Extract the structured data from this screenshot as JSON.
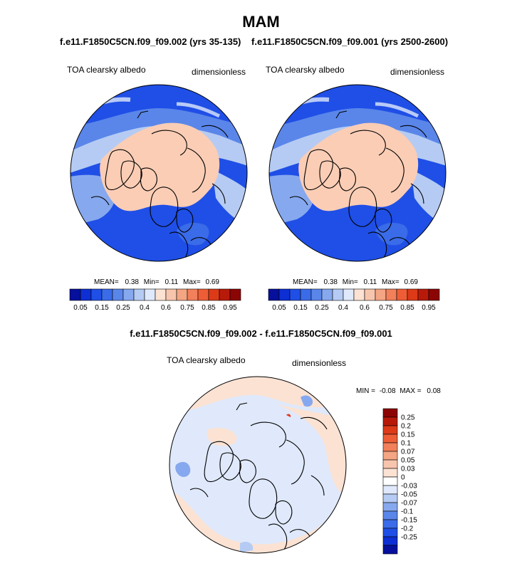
{
  "page": {
    "title": "MAM",
    "diff_title": "f.e11.F1850C5CN.f09_f09.002 - f.e11.F1850C5CN.f09_f09.001"
  },
  "panels": [
    {
      "case_title": "f.e11.F1850C5CN.f09_f09.002 (yrs 35-135)",
      "variable": "TOA clearsky albedo",
      "units": "dimensionless",
      "stats": {
        "mean_label": "MEAN=",
        "mean": "0.38",
        "min_label": "Min=",
        "min": "0.11",
        "max_label": "Max=",
        "max": "0.69"
      }
    },
    {
      "case_title": "f.e11.F1850C5CN.f09_f09.001 (yrs 2500-2600)",
      "variable": "TOA clearsky albedo",
      "units": "dimensionless",
      "stats": {
        "mean_label": "MEAN=",
        "mean": "0.38",
        "min_label": "Min=",
        "min": "0.11",
        "max_label": "Max=",
        "max": "0.69"
      }
    }
  ],
  "diff_panel": {
    "variable": "TOA clearsky albedo",
    "units": "dimensionless",
    "stats": {
      "min_label": "MIN =",
      "min": "-0.08",
      "max_label": "MAX =",
      "max": "0.08"
    }
  },
  "chart_data": [
    {
      "type": "heatmap",
      "projection": "north polar stereographic",
      "colorbar": {
        "orientation": "horizontal",
        "colors": [
          "#06109c",
          "#0d2fd3",
          "#1f4fe6",
          "#3a6be8",
          "#5a86ea",
          "#86a8ee",
          "#b5cbf3",
          "#dfe9fb",
          "#fbe2d3",
          "#f7c5ad",
          "#f4a583",
          "#f1805b",
          "#ee5d36",
          "#dd3a18",
          "#b81a0a",
          "#8c0505"
        ],
        "tick_labels": [
          "0.05",
          "0.15",
          "0.25",
          "0.4",
          "0.6",
          "0.75",
          "0.85",
          "0.95"
        ]
      }
    },
    {
      "type": "heatmap",
      "projection": "north polar stereographic",
      "colorbar": {
        "orientation": "horizontal",
        "colors": [
          "#06109c",
          "#0d2fd3",
          "#1f4fe6",
          "#3a6be8",
          "#5a86ea",
          "#86a8ee",
          "#b5cbf3",
          "#dfe9fb",
          "#fbe2d3",
          "#f7c5ad",
          "#f4a583",
          "#f1805b",
          "#ee5d36",
          "#dd3a18",
          "#b81a0a",
          "#8c0505"
        ],
        "tick_labels": [
          "0.05",
          "0.15",
          "0.25",
          "0.4",
          "0.6",
          "0.75",
          "0.85",
          "0.95"
        ]
      }
    },
    {
      "type": "heatmap",
      "projection": "north polar stereographic",
      "colorbar": {
        "orientation": "vertical",
        "colors_top_to_bottom": [
          "#8c0505",
          "#b81a0a",
          "#dd3a18",
          "#ee5d36",
          "#f1805b",
          "#f4a583",
          "#f7c5ad",
          "#fbe2d3",
          "#ffffff",
          "#dfe9fb",
          "#b5cbf3",
          "#86a8ee",
          "#5a86ea",
          "#3a6be8",
          "#1f4fe6",
          "#0d2fd3",
          "#06109c"
        ],
        "tick_labels": [
          "0.25",
          "0.2",
          "0.15",
          "0.1",
          "0.07",
          "0.05",
          "0.03",
          "0",
          "-0.03",
          "-0.05",
          "-0.07",
          "-0.1",
          "-0.15",
          "-0.2",
          "-0.25"
        ]
      }
    }
  ]
}
